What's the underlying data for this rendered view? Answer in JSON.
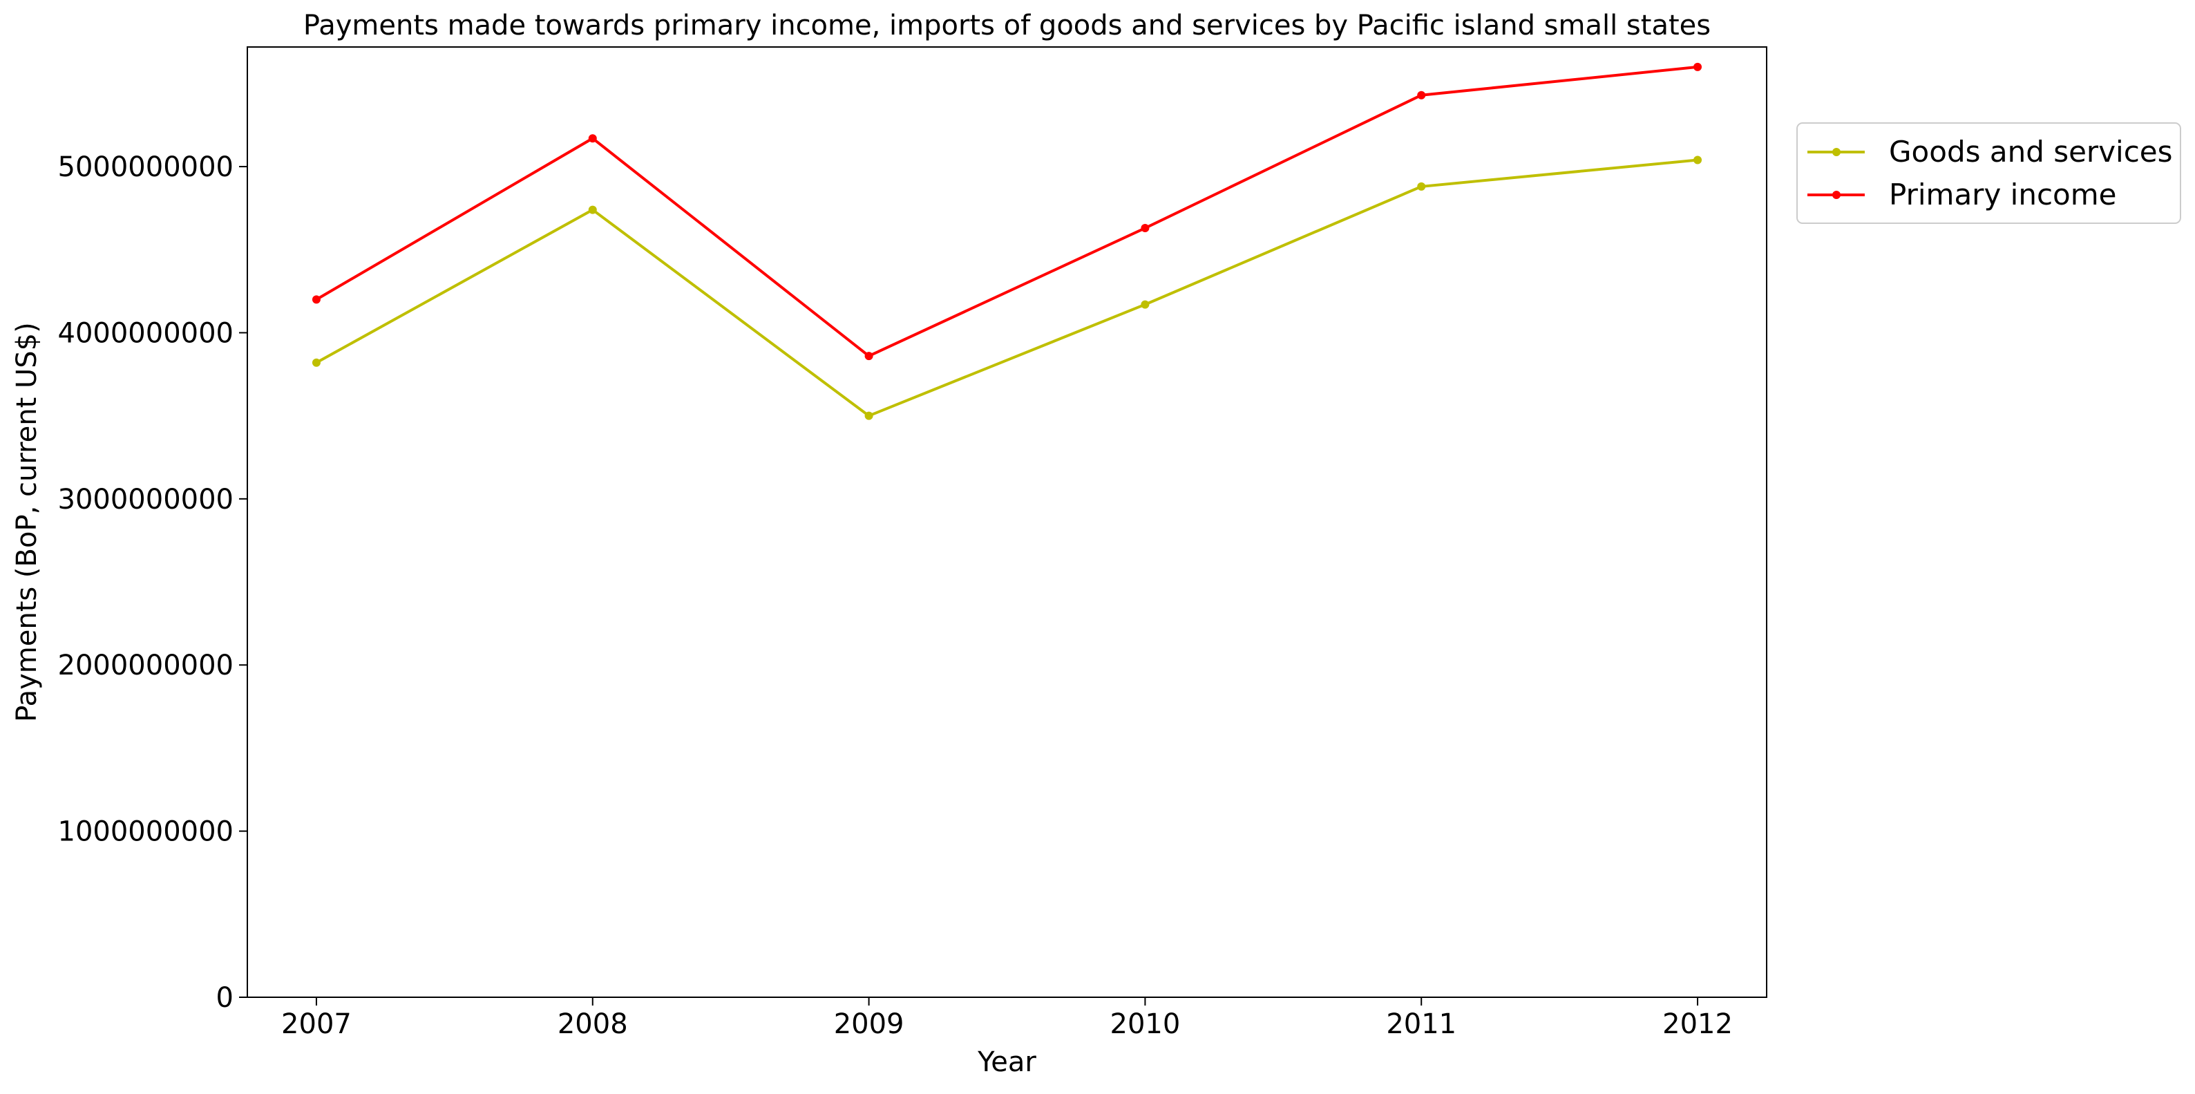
{
  "chart_data": {
    "type": "line",
    "title": "Payments made towards primary income, imports of goods and services by Pacific island small states",
    "xlabel": "Year",
    "ylabel": "Payments (BoP, current US$)",
    "x": [
      "2007",
      "2008",
      "2009",
      "2010",
      "2011",
      "2012"
    ],
    "xlim": [
      2006.75,
      2012.25
    ],
    "ylim": [
      0,
      5720000000
    ],
    "yticks": [
      0,
      1000000000,
      2000000000,
      3000000000,
      4000000000,
      5000000000
    ],
    "ytick_labels": [
      "0",
      "1000000000",
      "2000000000",
      "3000000000",
      "4000000000",
      "5000000000"
    ],
    "grid": false,
    "legend_position": "outside-top-right",
    "series": [
      {
        "name": "Goods and services",
        "color": "#bfbf00",
        "values": [
          3820000000,
          4740000000,
          3500000000,
          4170000000,
          4880000000,
          5040000000
        ]
      },
      {
        "name": "Primary income",
        "color": "#ff0000",
        "values": [
          4200000000,
          5170000000,
          3860000000,
          4630000000,
          5430000000,
          5600000000
        ]
      }
    ]
  }
}
